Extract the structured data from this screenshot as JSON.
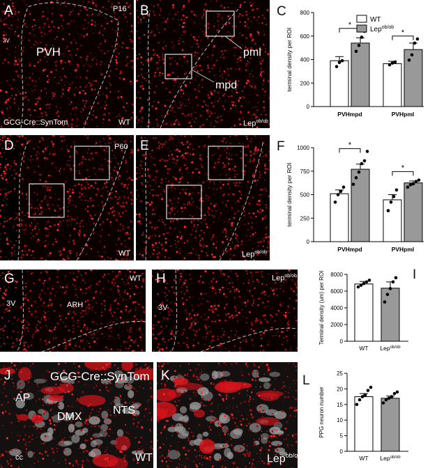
{
  "figure": {
    "panels": [
      {
        "id": "A",
        "letter": "A",
        "texts": {
          "age": "P16",
          "ventricle": "3V",
          "region": "PVH",
          "mouse": "GCG-Cre::SynTom",
          "genotype": "WT"
        }
      },
      {
        "id": "B",
        "letter": "B",
        "texts": {
          "inset1": "pml",
          "inset2": "mpd",
          "genotype_base": "Lep",
          "genotype_sup": "ob/ob"
        }
      },
      {
        "id": "D",
        "letter": "D",
        "texts": {
          "age": "P60",
          "genotype": "WT"
        }
      },
      {
        "id": "E",
        "letter": "E",
        "texts": {
          "genotype_base": "Lep",
          "genotype_sup": "ob/ob"
        }
      },
      {
        "id": "G",
        "letter": "G",
        "texts": {
          "ventricle": "3V",
          "region": "ARH",
          "genotype": "WT"
        }
      },
      {
        "id": "H",
        "letter": "H",
        "texts": {
          "ventricle": "3V",
          "genotype_base": "Lep",
          "genotype_sup": "ob/ob"
        }
      },
      {
        "id": "J",
        "letter": "J",
        "texts": {
          "mouse": "GCG-Cre::SynTom",
          "ap": "AP",
          "dmx": "DMX",
          "nts": "NTS",
          "cc": "cc",
          "genotype": "WT"
        }
      },
      {
        "id": "K",
        "letter": "K",
        "texts": {
          "genotype_base": "Lep",
          "genotype_sup": "ob/ob"
        }
      }
    ]
  },
  "chart_data": [
    {
      "id": "C",
      "letter": "C",
      "type": "bar",
      "ylabel": "terminal density per ROI",
      "ylim": [
        0,
        800
      ],
      "yticks": [
        0,
        200,
        400,
        600,
        800
      ],
      "categories": [
        "PVHmpd",
        "PVHpml"
      ],
      "legend": [
        {
          "name": "WT",
          "color": "#ffffff"
        },
        {
          "name_base": "Lep",
          "name_sup": "ob/ob",
          "color": "#999999"
        }
      ],
      "series": [
        {
          "values": [
            390,
            365
          ],
          "err": [
            35,
            20
          ],
          "points": [
            [
              340,
              375,
              390
            ],
            [
              355,
              370,
              380
            ]
          ]
        },
        {
          "values": [
            540,
            485
          ],
          "err": [
            45,
            55
          ],
          "points": [
            [
              470,
              520,
              590,
              640
            ],
            [
              395,
              440,
              540,
              575
            ]
          ]
        }
      ],
      "significance": [
        {
          "label": "*",
          "category": 0,
          "y": 665
        },
        {
          "label": "*",
          "category": 1,
          "y": 600
        }
      ]
    },
    {
      "id": "F",
      "letter": "F",
      "type": "bar",
      "ylabel": "terminal density per ROI",
      "ylim": [
        0,
        1000
      ],
      "yticks": [
        0,
        250,
        500,
        750,
        1000
      ],
      "categories": [
        "PVHmpd",
        "PVHpml"
      ],
      "series": [
        {
          "values": [
            510,
            445
          ],
          "err": [
            40,
            55
          ],
          "points": [
            [
              420,
              500,
              535,
              580
            ],
            [
              330,
              420,
              480,
              550
            ]
          ]
        },
        {
          "values": [
            770,
            625
          ],
          "err": [
            55,
            20
          ],
          "points": [
            [
              610,
              680,
              740,
              830,
              860,
              960
            ],
            [
              580,
              605,
              615,
              640,
              655
            ]
          ]
        }
      ],
      "significance": [
        {
          "label": "*",
          "category": 0,
          "y": 990
        },
        {
          "label": "*",
          "category": 1,
          "y": 745
        }
      ]
    },
    {
      "id": "I",
      "letter": "I",
      "type": "bar",
      "ylabel": "Terminal density (um) per ROI",
      "ylim": [
        0,
        8000
      ],
      "yticks": [
        0,
        2000,
        4000,
        6000,
        8000
      ],
      "categories": [
        "WT",
        "Lep|ob/ob"
      ],
      "values": [
        6850,
        6350
      ],
      "err": [
        300,
        750
      ],
      "colors": [
        "#ffffff",
        "#999999"
      ],
      "points": [
        [
          6500,
          6700,
          6900,
          7100,
          7300
        ],
        [
          4700,
          5600,
          6300,
          7100,
          7600
        ]
      ]
    },
    {
      "id": "L",
      "letter": "L",
      "type": "bar",
      "ylabel": "PPG neuron number",
      "ylim": [
        0,
        25
      ],
      "yticks": [
        0,
        5,
        10,
        15,
        20,
        25
      ],
      "categories": [
        "WT",
        "Lep|ob/ob"
      ],
      "values": [
        17.5,
        17.0
      ],
      "err": [
        1.0,
        0.7
      ],
      "colors": [
        "#ffffff",
        "#999999"
      ],
      "points": [
        [
          15,
          16.5,
          17.5,
          18,
          19.5,
          20.5
        ],
        [
          15.5,
          16.5,
          17,
          17.5,
          18.5,
          19
        ]
      ]
    }
  ]
}
